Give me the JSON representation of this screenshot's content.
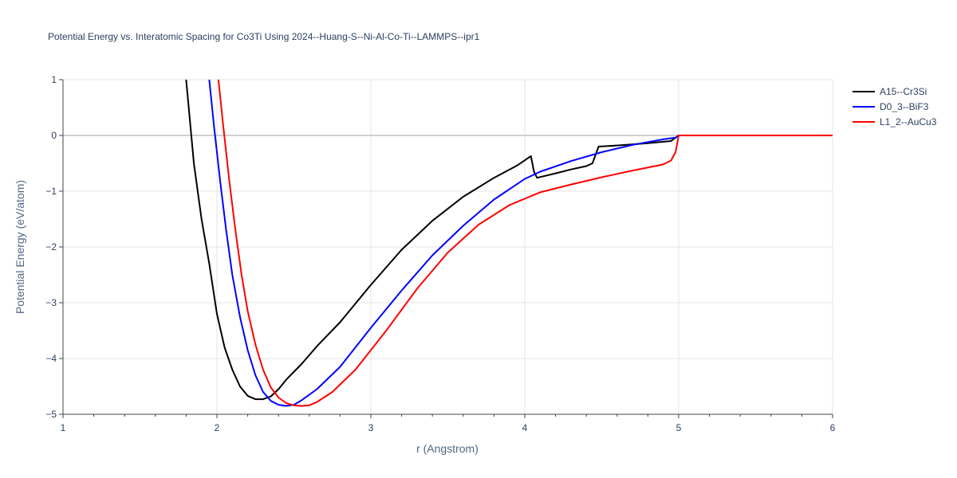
{
  "chart_data": {
    "type": "line",
    "title": "Potential Energy vs. Interatomic Spacing for Co3Ti Using 2024--Huang-S--Ni-Al-Co-Ti--LAMMPS--ipr1",
    "xlabel": "r (Angstrom)",
    "ylabel": "Potential Energy (eV/atom)",
    "xlim": [
      1,
      6
    ],
    "ylim": [
      -5,
      1
    ],
    "xticks": [
      1,
      2,
      3,
      4,
      5,
      6
    ],
    "xtick_labels": [
      "1",
      "2",
      "3",
      "4",
      "5",
      "6"
    ],
    "yticks": [
      1,
      0,
      -1,
      -2,
      -3,
      -4,
      -5
    ],
    "ytick_labels": [
      "1",
      "0",
      "−1",
      "−2",
      "−3",
      "−4",
      "−5"
    ],
    "grid": true,
    "legend_position": "top-right",
    "series": [
      {
        "name": "A15--Cr3Si",
        "color": "#000000",
        "points": [
          [
            1.8,
            1.0
          ],
          [
            1.82,
            0.4
          ],
          [
            1.85,
            -0.5
          ],
          [
            1.9,
            -1.5
          ],
          [
            1.95,
            -2.3
          ],
          [
            2.0,
            -3.2
          ],
          [
            2.05,
            -3.8
          ],
          [
            2.1,
            -4.2
          ],
          [
            2.15,
            -4.5
          ],
          [
            2.2,
            -4.67
          ],
          [
            2.25,
            -4.73
          ],
          [
            2.3,
            -4.73
          ],
          [
            2.35,
            -4.68
          ],
          [
            2.4,
            -4.55
          ],
          [
            2.45,
            -4.38
          ],
          [
            2.55,
            -4.1
          ],
          [
            2.65,
            -3.78
          ],
          [
            2.8,
            -3.35
          ],
          [
            3.0,
            -2.68
          ],
          [
            3.2,
            -2.05
          ],
          [
            3.4,
            -1.53
          ],
          [
            3.6,
            -1.1
          ],
          [
            3.8,
            -0.76
          ],
          [
            3.95,
            -0.54
          ],
          [
            4.04,
            -0.37
          ],
          [
            4.06,
            -0.65
          ],
          [
            4.08,
            -0.76
          ],
          [
            4.2,
            -0.68
          ],
          [
            4.3,
            -0.61
          ],
          [
            4.4,
            -0.55
          ],
          [
            4.44,
            -0.5
          ],
          [
            4.48,
            -0.2
          ],
          [
            4.6,
            -0.18
          ],
          [
            4.8,
            -0.14
          ],
          [
            4.95,
            -0.1
          ],
          [
            5.0,
            0.0
          ],
          [
            6.0,
            0.0
          ]
        ]
      },
      {
        "name": "D0_3--BiF3",
        "color": "#0000ff",
        "points": [
          [
            1.95,
            1.0
          ],
          [
            1.98,
            0.2
          ],
          [
            2.02,
            -0.8
          ],
          [
            2.06,
            -1.7
          ],
          [
            2.1,
            -2.5
          ],
          [
            2.15,
            -3.25
          ],
          [
            2.2,
            -3.85
          ],
          [
            2.25,
            -4.3
          ],
          [
            2.3,
            -4.6
          ],
          [
            2.35,
            -4.76
          ],
          [
            2.4,
            -4.83
          ],
          [
            2.45,
            -4.85
          ],
          [
            2.5,
            -4.83
          ],
          [
            2.55,
            -4.75
          ],
          [
            2.65,
            -4.55
          ],
          [
            2.8,
            -4.15
          ],
          [
            3.0,
            -3.45
          ],
          [
            3.2,
            -2.78
          ],
          [
            3.4,
            -2.15
          ],
          [
            3.6,
            -1.62
          ],
          [
            3.8,
            -1.15
          ],
          [
            4.0,
            -0.78
          ],
          [
            4.1,
            -0.65
          ],
          [
            4.3,
            -0.46
          ],
          [
            4.5,
            -0.3
          ],
          [
            4.7,
            -0.17
          ],
          [
            4.9,
            -0.07
          ],
          [
            4.98,
            -0.04
          ],
          [
            5.0,
            0.0
          ],
          [
            6.0,
            0.0
          ]
        ]
      },
      {
        "name": "L1_2--AuCu3",
        "color": "#ff0000",
        "points": [
          [
            2.01,
            1.0
          ],
          [
            2.04,
            0.2
          ],
          [
            2.08,
            -0.8
          ],
          [
            2.12,
            -1.7
          ],
          [
            2.16,
            -2.5
          ],
          [
            2.2,
            -3.15
          ],
          [
            2.25,
            -3.75
          ],
          [
            2.3,
            -4.2
          ],
          [
            2.35,
            -4.52
          ],
          [
            2.4,
            -4.7
          ],
          [
            2.45,
            -4.8
          ],
          [
            2.5,
            -4.84
          ],
          [
            2.55,
            -4.85
          ],
          [
            2.6,
            -4.84
          ],
          [
            2.65,
            -4.78
          ],
          [
            2.75,
            -4.6
          ],
          [
            2.9,
            -4.2
          ],
          [
            3.1,
            -3.5
          ],
          [
            3.3,
            -2.75
          ],
          [
            3.5,
            -2.1
          ],
          [
            3.7,
            -1.6
          ],
          [
            3.9,
            -1.25
          ],
          [
            4.1,
            -1.02
          ],
          [
            4.3,
            -0.88
          ],
          [
            4.5,
            -0.75
          ],
          [
            4.7,
            -0.63
          ],
          [
            4.9,
            -0.52
          ],
          [
            4.95,
            -0.45
          ],
          [
            4.98,
            -0.3
          ],
          [
            5.0,
            0.0
          ],
          [
            6.0,
            0.0
          ]
        ]
      }
    ]
  }
}
